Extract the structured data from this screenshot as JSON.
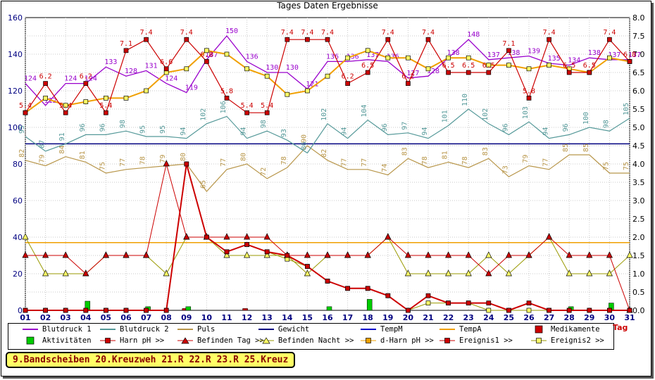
{
  "chart_data": {
    "type": "line",
    "title": "Tages Daten Ergebnisse",
    "xlabel": "Tag",
    "x": [
      "01",
      "02",
      "03",
      "04",
      "05",
      "06",
      "07",
      "08",
      "09",
      "10",
      "11",
      "12",
      "13",
      "14",
      "15",
      "16",
      "17",
      "18",
      "19",
      "20",
      "21",
      "22",
      "23",
      "24",
      "25",
      "26",
      "27",
      "28",
      "29",
      "30",
      "31"
    ],
    "ylim_left": [
      0,
      160
    ],
    "yticks_left": [
      0,
      20,
      40,
      60,
      80,
      100,
      120,
      140,
      160
    ],
    "ylim_right": [
      0.0,
      8.0
    ],
    "yticks_right": [
      "0.0",
      "0.5",
      "1.0",
      "1.5",
      "2.0",
      "2.5",
      "3.0",
      "3.5",
      "4.0",
      "4.5",
      "5.0",
      "5.5",
      "6.0",
      "6.5",
      "7.0",
      "7.5",
      "8.0"
    ],
    "grid": true,
    "series": [
      {
        "name": "Blutdruck 1",
        "color": "#9900cc",
        "axis": "left",
        "labels": true,
        "values": [
          124,
          112,
          124,
          124,
          133,
          128,
          131,
          124,
          119,
          137,
          150,
          136,
          130,
          130,
          121,
          136,
          136,
          137,
          136,
          127,
          128,
          138,
          148,
          137,
          138,
          139,
          135,
          134,
          138,
          137,
          137
        ]
      },
      {
        "name": "Blutdruck 2",
        "color": "#559999",
        "axis": "left",
        "labels": true,
        "values": [
          95,
          87,
          91,
          96,
          96,
          98,
          95,
          95,
          94,
          102,
          106,
          94,
          98,
          93,
          86,
          102,
          94,
          104,
          96,
          97,
          94,
          101,
          110,
          102,
          96,
          103,
          94,
          96,
          100,
          98,
          105
        ]
      },
      {
        "name": "Puls",
        "color": "#b8964a",
        "axis": "left",
        "labels": true,
        "values": [
          82,
          79,
          84,
          81,
          75,
          77,
          78,
          79,
          80,
          65,
          77,
          80,
          72,
          78,
          90,
          82,
          77,
          77,
          74,
          83,
          78,
          81,
          78,
          83,
          73,
          79,
          77,
          85,
          85,
          75,
          75
        ]
      },
      {
        "name": "Gewicht",
        "color": "#000080",
        "axis": "left",
        "values": [
          91,
          91,
          91,
          91,
          91,
          91,
          91,
          91,
          91,
          91,
          91,
          91,
          91,
          91,
          91,
          91,
          91,
          91,
          91,
          91,
          91,
          91,
          91,
          91,
          91,
          91,
          91,
          91,
          91,
          91,
          91
        ]
      },
      {
        "name": "TempM",
        "color": "#0000cc",
        "axis": "left",
        "values": [
          37,
          37,
          37,
          37,
          37,
          37,
          37,
          37,
          37,
          37,
          37,
          37,
          37,
          37,
          37,
          37,
          37,
          37,
          37,
          37,
          37,
          37,
          37,
          37,
          37,
          37,
          37,
          37,
          37,
          37,
          37
        ]
      },
      {
        "name": "TempA",
        "color": "#f0a000",
        "axis": "left",
        "values": [
          37,
          37,
          37,
          37,
          37,
          37,
          37,
          37,
          37,
          37,
          37,
          37,
          37,
          37,
          37,
          37,
          37,
          37,
          37,
          37,
          37,
          37,
          37,
          37,
          37,
          37,
          37,
          37,
          37,
          37,
          37
        ]
      },
      {
        "name": "Medikamente",
        "color": "#cc0000",
        "axis": "left",
        "bars": true,
        "values": [
          0,
          0,
          0,
          0,
          0,
          0,
          0,
          0,
          1,
          0,
          0,
          1,
          0,
          0,
          0,
          0,
          0,
          0,
          0,
          0,
          0,
          0,
          0,
          0,
          0,
          0,
          0,
          0,
          0,
          0,
          0
        ]
      },
      {
        "name": "Aktivitäten",
        "color": "#00cc00",
        "axis": "left",
        "bars": true,
        "values": [
          0,
          0,
          0,
          5,
          0,
          0,
          2,
          0,
          2,
          0,
          0,
          0,
          0,
          0,
          0,
          2,
          0,
          6,
          0,
          0,
          0,
          0,
          0,
          0,
          0,
          0,
          0,
          2,
          0,
          4,
          0
        ]
      },
      {
        "name": "Harn pH >>",
        "color": "#cc0000",
        "axis": "right",
        "labels": true,
        "values": [
          5.4,
          6.2,
          5.4,
          6.2,
          5.4,
          7.1,
          7.4,
          6.6,
          7.4,
          6.8,
          5.8,
          5.4,
          5.4,
          7.4,
          7.4,
          7.4,
          6.2,
          6.5,
          7.4,
          6.2,
          7.4,
          6.5,
          6.5,
          6.5,
          7.1,
          5.8,
          7.4,
          6.5,
          6.5,
          7.4,
          6.8
        ]
      },
      {
        "name": "Befinden Tag >>",
        "color": "#cc0000",
        "axis": "right",
        "values": [
          1.5,
          1.5,
          1.5,
          1.0,
          1.5,
          1.5,
          1.5,
          4.0,
          2.0,
          2.0,
          2.0,
          2.0,
          2.0,
          1.5,
          1.5,
          1.5,
          1.5,
          1.5,
          2.0,
          1.5,
          1.5,
          1.5,
          1.5,
          1.0,
          1.5,
          1.5,
          2.0,
          1.5,
          1.5,
          1.5,
          0.0
        ]
      },
      {
        "name": "Befinden Nacht >>",
        "color": "#999900",
        "axis": "right",
        "values": [
          2.0,
          1.0,
          1.0,
          1.0,
          1.5,
          1.5,
          1.5,
          1.0,
          2.0,
          2.0,
          1.5,
          1.5,
          1.5,
          1.5,
          1.0,
          1.5,
          1.5,
          1.5,
          2.0,
          1.0,
          1.0,
          1.0,
          1.0,
          1.5,
          1.0,
          1.5,
          2.0,
          1.0,
          1.0,
          1.0,
          1.5
        ]
      },
      {
        "name": "d-Harn pH >>",
        "color": "#f0a000",
        "axis": "right",
        "values": [
          5.4,
          5.8,
          5.6,
          5.7,
          5.8,
          5.8,
          6.0,
          6.5,
          6.6,
          7.1,
          7.0,
          6.6,
          6.4,
          5.9,
          6.0,
          6.4,
          6.9,
          7.1,
          6.9,
          6.9,
          6.6,
          6.9,
          6.9,
          6.7,
          6.7,
          6.6,
          6.7,
          6.6,
          6.5,
          6.9,
          6.8
        ]
      },
      {
        "name": "Ereignis1 >>",
        "color": "#cc0000",
        "axis": "right",
        "values": [
          0,
          0,
          0,
          0,
          0,
          0,
          0,
          0,
          4.0,
          2.0,
          1.6,
          1.8,
          1.6,
          1.5,
          1.2,
          0.8,
          0.6,
          0.6,
          0.4,
          0,
          0.4,
          0.2,
          0.2,
          0.2,
          0,
          0.2,
          0,
          0,
          0,
          0,
          0
        ]
      },
      {
        "name": "Ereignis2 >>",
        "color": "#999900",
        "axis": "right",
        "values": [
          0,
          0,
          0,
          0,
          0,
          0,
          0,
          0,
          4.0,
          2.0,
          1.6,
          1.8,
          1.6,
          1.4,
          1.2,
          0.8,
          0.6,
          0.6,
          0.4,
          0,
          0.2,
          0.2,
          0.2,
          0,
          0,
          0,
          0,
          0,
          0,
          0,
          0
        ]
      }
    ]
  },
  "legend": [
    {
      "label": "Blutdruck 1",
      "icon": "line",
      "color": "#9900cc"
    },
    {
      "label": "Blutdruck 2",
      "icon": "line",
      "color": "#559999"
    },
    {
      "label": "Puls",
      "icon": "line",
      "color": "#b8964a"
    },
    {
      "label": "Gewicht",
      "icon": "line",
      "color": "#000080"
    },
    {
      "label": "TempM",
      "icon": "line",
      "color": "#0000cc"
    },
    {
      "label": "TempA",
      "icon": "line",
      "color": "#f0a000"
    },
    {
      "label": "Medikamente",
      "icon": "square",
      "color": "#cc0000"
    },
    {
      "label": "Aktivitäten",
      "icon": "square",
      "color": "#00cc00"
    },
    {
      "label": "Harn pH >>",
      "icon": "line-square",
      "color": "#cc0000"
    },
    {
      "label": "Befinden Tag >>",
      "icon": "triangle",
      "color": "#cc0000"
    },
    {
      "label": "Befinden Nacht >>",
      "icon": "triangle",
      "color": "#ffff66"
    },
    {
      "label": "d-Harn pH >>",
      "icon": "line-square",
      "color": "#f0a000"
    },
    {
      "label": "Ereignis1 >>",
      "icon": "line-square",
      "color": "#cc0000"
    },
    {
      "label": "Ereignis2 >>",
      "icon": "line-square",
      "color": "#ffff66"
    }
  ],
  "x_axis_label": "Tag",
  "annotation": "9.Bandscheiben 20.Kreuzweh 21.R 22.R 23.R 25.Kreuz"
}
